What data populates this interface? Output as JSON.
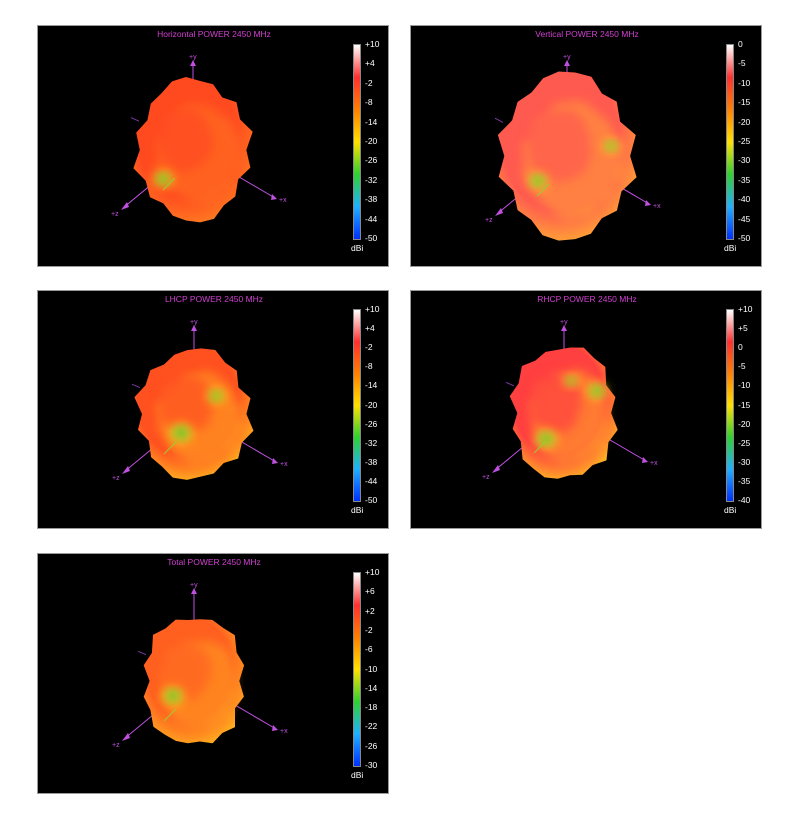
{
  "charts": [
    {
      "id": "horizontal",
      "title": "Horizontal POWER 2450  MHz",
      "unit": "dBi",
      "scale_ticks": [
        "+10",
        "+4",
        "-2",
        "-8",
        "-14",
        "-20",
        "-26",
        "-32",
        "-38",
        "-44",
        "-50"
      ],
      "axes": {
        "y": "+y",
        "x": "+x",
        "z": "+z"
      }
    },
    {
      "id": "vertical",
      "title": "Vertical POWER 2450  MHz",
      "unit": "dBi",
      "scale_ticks": [
        "0",
        "-5",
        "-10",
        "-15",
        "-20",
        "-25",
        "-30",
        "-35",
        "-40",
        "-45",
        "-50"
      ],
      "axes": {
        "y": "+y",
        "x": "+x",
        "z": "+z"
      }
    },
    {
      "id": "lhcp",
      "title": "LHCP POWER 2450  MHz",
      "unit": "dBi",
      "scale_ticks": [
        "+10",
        "+4",
        "-2",
        "-8",
        "-14",
        "-20",
        "-26",
        "-32",
        "-38",
        "-44",
        "-50"
      ],
      "axes": {
        "y": "+y",
        "x": "+x",
        "z": "+z"
      }
    },
    {
      "id": "rhcp",
      "title": "RHCP POWER 2450  MHz",
      "unit": "dBi",
      "scale_ticks": [
        "+10",
        "+5",
        "0",
        "-5",
        "-10",
        "-15",
        "-20",
        "-25",
        "-30",
        "-35",
        "-40"
      ],
      "axes": {
        "y": "+y",
        "x": "+x",
        "z": "+z"
      }
    },
    {
      "id": "total",
      "title": "Total POWER 2450  MHz",
      "unit": "dBi",
      "scale_ticks": [
        "+10",
        "+6",
        "+2",
        "-2",
        "-6",
        "-10",
        "-14",
        "-18",
        "-22",
        "-26",
        "-30"
      ],
      "axes": {
        "y": "+y",
        "x": "+x",
        "z": "+z"
      }
    }
  ],
  "chart_data": [
    {
      "type": "heatmap",
      "title": "Horizontal POWER 2450  MHz",
      "colorbar_label": "dBi",
      "colorbar_range": [
        -50,
        10
      ],
      "colorbar_ticks": [
        10,
        4,
        -2,
        -8,
        -14,
        -20,
        -26,
        -32,
        -38,
        -44,
        -50
      ]
    },
    {
      "type": "heatmap",
      "title": "Vertical POWER 2450  MHz",
      "colorbar_label": "dBi",
      "colorbar_range": [
        -50,
        0
      ],
      "colorbar_ticks": [
        0,
        -5,
        -10,
        -15,
        -20,
        -25,
        -30,
        -35,
        -40,
        -45,
        -50
      ]
    },
    {
      "type": "heatmap",
      "title": "LHCP POWER 2450  MHz",
      "colorbar_label": "dBi",
      "colorbar_range": [
        -50,
        10
      ],
      "colorbar_ticks": [
        10,
        4,
        -2,
        -8,
        -14,
        -20,
        -26,
        -32,
        -38,
        -44,
        -50
      ]
    },
    {
      "type": "heatmap",
      "title": "RHCP POWER 2450  MHz",
      "colorbar_label": "dBi",
      "colorbar_range": [
        -40,
        10
      ],
      "colorbar_ticks": [
        10,
        5,
        0,
        -5,
        -10,
        -15,
        -20,
        -25,
        -30,
        -35,
        -40
      ]
    },
    {
      "type": "heatmap",
      "title": "Total POWER 2450  MHz",
      "colorbar_label": "dBi",
      "colorbar_range": [
        -30,
        10
      ],
      "colorbar_ticks": [
        10,
        6,
        2,
        -2,
        -6,
        -10,
        -14,
        -18,
        -22,
        -26,
        -30
      ]
    }
  ],
  "colors": {
    "title": "#d040d0",
    "axis": "#c050e0",
    "background": "#000000",
    "colorbar": [
      "#ffffff",
      "#ff3030",
      "#ff8000",
      "#ffe000",
      "#30d030",
      "#20b0ff",
      "#0030ff"
    ]
  }
}
